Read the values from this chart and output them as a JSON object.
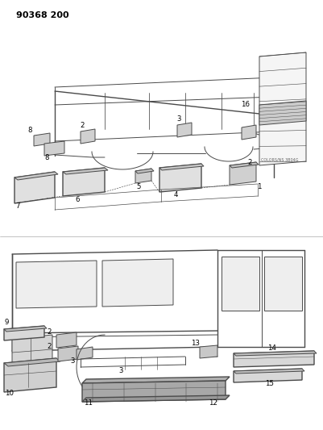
{
  "title": "90368 200",
  "bg": "#ffffff",
  "lc": "#4a4a4a",
  "label_color": "#000000",
  "small_text": "COLORS/NS 3B04G",
  "figsize": [
    4.01,
    5.33
  ],
  "dpi": 100
}
